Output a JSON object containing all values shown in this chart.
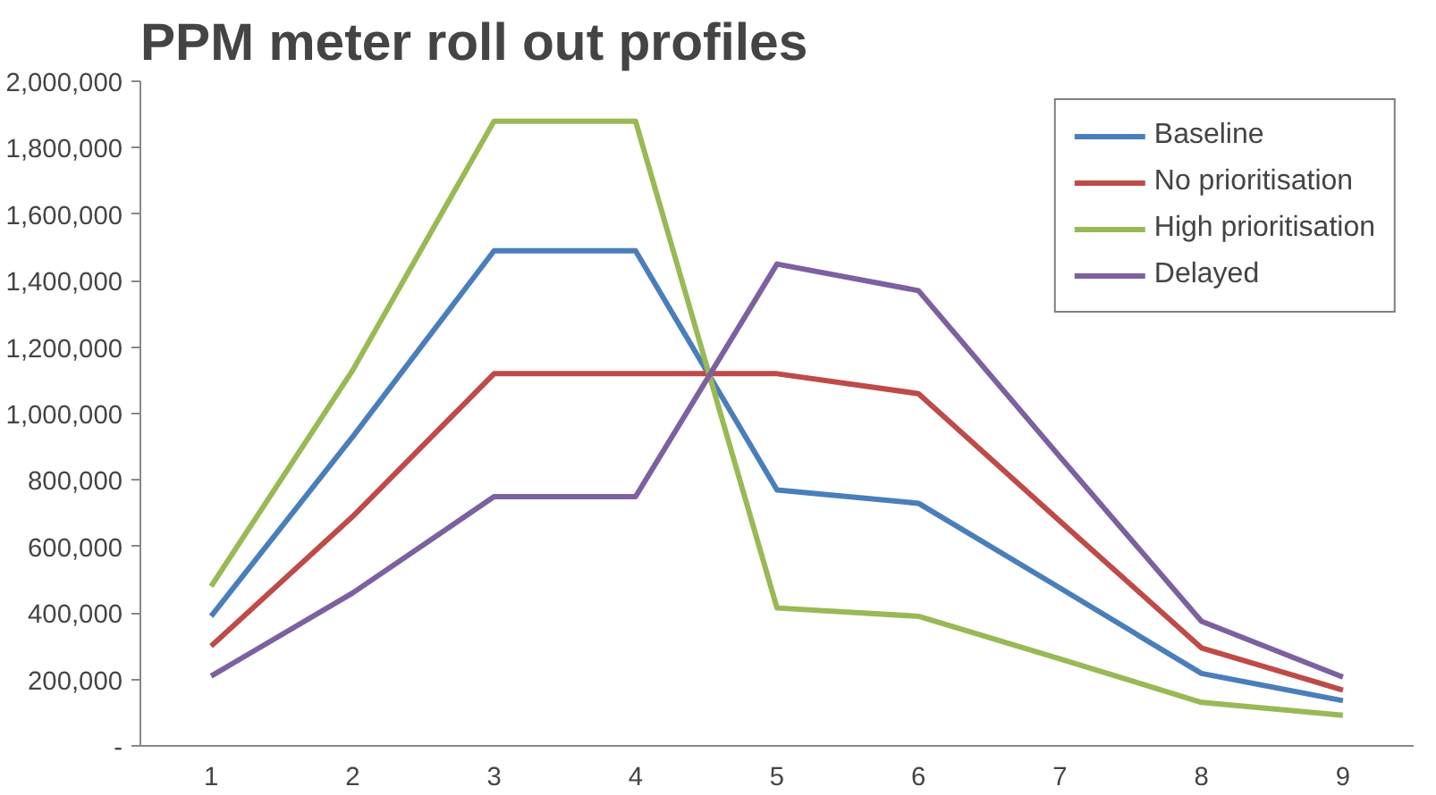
{
  "chart_data": {
    "type": "line",
    "title": "PPM meter roll out profiles",
    "categories": [
      "1",
      "2",
      "3",
      "4",
      "5",
      "6",
      "7",
      "8",
      "9"
    ],
    "series": [
      {
        "name": "Baseline",
        "color": "#4a7ebb",
        "values": [
          390000,
          930000,
          1490000,
          1490000,
          770000,
          730000,
          475000,
          218000,
          136000
        ]
      },
      {
        "name": "No prioritisation",
        "color": "#be4b48",
        "values": [
          300000,
          690000,
          1120000,
          1120000,
          1120000,
          1060000,
          676000,
          295000,
          168000
        ]
      },
      {
        "name": "High prioritisation",
        "color": "#98b954",
        "values": [
          480000,
          1130000,
          1880000,
          1880000,
          415000,
          390000,
          262000,
          131000,
          92000
        ]
      },
      {
        "name": "Delayed",
        "color": "#7d60a0",
        "values": [
          210000,
          460000,
          750000,
          750000,
          1450000,
          1370000,
          870000,
          375000,
          207000
        ]
      }
    ],
    "ylim": [
      0,
      2000000
    ],
    "yticks": [
      {
        "value": 0,
        "label": "-"
      },
      {
        "value": 200000,
        "label": "200,000"
      },
      {
        "value": 400000,
        "label": "400,000"
      },
      {
        "value": 600000,
        "label": "600,000"
      },
      {
        "value": 800000,
        "label": "800,000"
      },
      {
        "value": 1000000,
        "label": "1,000,000"
      },
      {
        "value": 1200000,
        "label": "1,200,000"
      },
      {
        "value": 1400000,
        "label": "1,400,000"
      },
      {
        "value": 1600000,
        "label": "1,600,000"
      },
      {
        "value": 1800000,
        "label": "1,800,000"
      },
      {
        "value": 2000000,
        "label": "2,000,000"
      }
    ],
    "grid": false,
    "legend": "top right",
    "marker": "none",
    "line_style": "solid"
  }
}
